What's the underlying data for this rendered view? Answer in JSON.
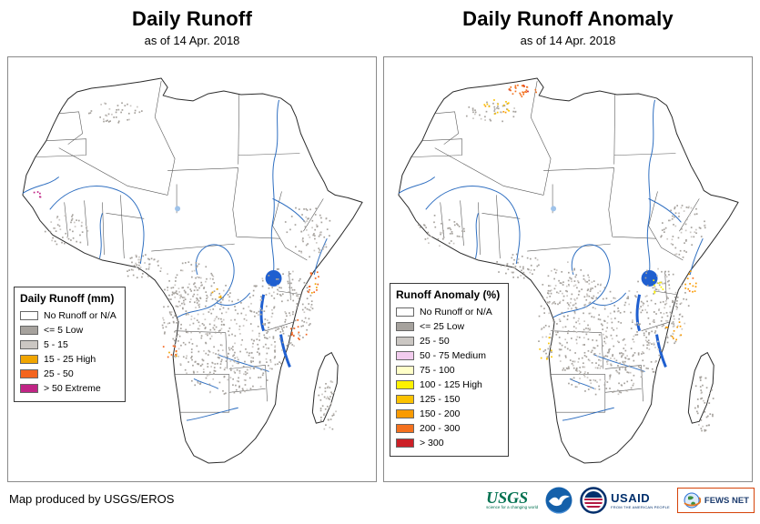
{
  "panels": [
    {
      "title": "Daily Runoff",
      "subtitle": "as of 14 Apr. 2018",
      "legend": {
        "title": "Daily Runoff (mm)",
        "items": [
          {
            "label": "No Runoff or N/A",
            "color": "#ffffff"
          },
          {
            "label": "<= 5 Low",
            "color": "#a6a29d"
          },
          {
            "label": "5 - 15",
            "color": "#cbc7c3"
          },
          {
            "label": "15 - 25 High",
            "color": "#f0a500"
          },
          {
            "label": "25 - 50",
            "color": "#f4641e"
          },
          {
            "label": "> 50 Extreme",
            "color": "#c02485"
          }
        ]
      }
    },
    {
      "title": "Daily Runoff Anomaly",
      "subtitle": "as of 14 Apr. 2018",
      "legend": {
        "title": "Runoff Anomaly (%)",
        "items": [
          {
            "label": "No Runoff or N/A",
            "color": "#ffffff"
          },
          {
            "label": "<= 25 Low",
            "color": "#a6a29d"
          },
          {
            "label": "25 - 50",
            "color": "#cbc7c3"
          },
          {
            "label": "50 - 75 Medium",
            "color": "#f2ccee"
          },
          {
            "label": "75 - 100",
            "color": "#ffffc8"
          },
          {
            "label": "100 - 125 High",
            "color": "#fef200"
          },
          {
            "label": "125 - 150",
            "color": "#fcc200"
          },
          {
            "label": "150 - 200",
            "color": "#fa9b00"
          },
          {
            "label": "200 - 300",
            "color": "#f4711e"
          },
          {
            "label": "> 300",
            "color": "#cc2027"
          }
        ]
      }
    }
  ],
  "footer": {
    "credit": "Map produced by USGS/EROS",
    "logos": {
      "usgs": {
        "name": "USGS",
        "tagline": "science for a changing world"
      },
      "noaa": {
        "name": "NOAA"
      },
      "usaid": {
        "name": "USAID",
        "tagline": "FROM THE AMERICAN PEOPLE"
      },
      "fewsnet": {
        "name": "FEWS NET"
      }
    }
  },
  "map_colors": {
    "river": "#2f6fc1",
    "lake": "#1f5fd0",
    "coast": "#2b2b2b",
    "country_border": "#5a5a5a"
  }
}
